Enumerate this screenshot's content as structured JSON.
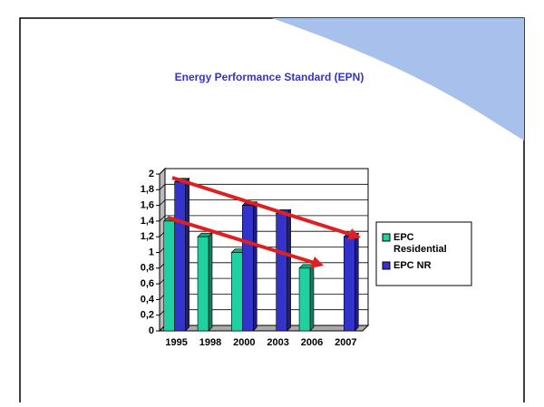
{
  "chart_data": {
    "type": "bar",
    "title": "Energy Performance Standard (EPN)",
    "categories": [
      "1995",
      "1998",
      "2000",
      "2003",
      "2006",
      "2007"
    ],
    "series": [
      {
        "name": "EPC Residential",
        "color": "#20d0a0",
        "values": [
          1.4,
          1.2,
          1.0,
          null,
          0.8,
          null
        ]
      },
      {
        "name": "EPC NR",
        "color": "#3333cc",
        "values": [
          1.9,
          null,
          1.6,
          1.5,
          null,
          1.2
        ]
      }
    ],
    "ylim": [
      0,
      2
    ],
    "yticks": [
      0,
      {
        "value": 0.2,
        "label": "0,2"
      },
      {
        "value": 0.4,
        "label": "0,4"
      },
      {
        "value": 0.6,
        "label": "0,6"
      },
      {
        "value": 0.8,
        "label": "0,8"
      },
      1,
      {
        "value": 1.2,
        "label": "1,2"
      },
      {
        "value": 1.4,
        "label": "1,4"
      },
      {
        "value": 1.6,
        "label": "1,6"
      },
      {
        "value": 1.8,
        "label": "1,8"
      },
      2
    ],
    "grid": true,
    "legend": "right"
  }
}
